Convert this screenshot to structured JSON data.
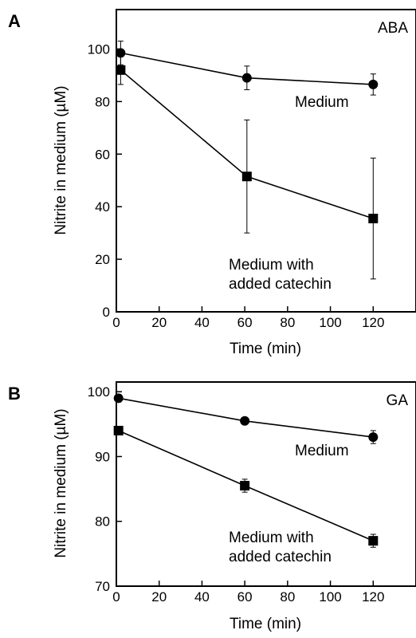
{
  "chart_data": [
    {
      "panel": "A",
      "type": "line",
      "condition_label": "ABA",
      "xlabel": "Time (min)",
      "ylabel": "Nitrite in medium (µM)",
      "xlim": [
        0,
        140
      ],
      "ylim": [
        0,
        115
      ],
      "xticks": [
        0,
        20,
        40,
        60,
        80,
        100,
        120
      ],
      "yticks": [
        0,
        20,
        40,
        60,
        80,
        100
      ],
      "grid": false,
      "legend": "none (series labeled directly on plot)",
      "series": [
        {
          "name": "Medium",
          "marker": "circle",
          "x": [
            2,
            61,
            120
          ],
          "y": [
            98.5,
            89,
            86.5
          ],
          "err": [
            4.5,
            4.5,
            4
          ]
        },
        {
          "name": "Medium with added catechin",
          "label_lines": [
            "Medium with",
            "added catechin"
          ],
          "marker": "square",
          "x": [
            2,
            61,
            120
          ],
          "y": [
            92,
            51.5,
            35.5
          ],
          "err": [
            5.5,
            21.5,
            23
          ]
        }
      ]
    },
    {
      "panel": "B",
      "type": "line",
      "condition_label": "GA",
      "xlabel": "Time (min)",
      "ylabel": "Nitrite in medium (µM)",
      "xlim": [
        0,
        140
      ],
      "ylim": [
        70,
        101.5
      ],
      "xticks": [
        0,
        20,
        40,
        60,
        80,
        100,
        120
      ],
      "yticks": [
        70,
        80,
        90,
        100
      ],
      "grid": false,
      "legend": "none (series labeled directly on plot)",
      "series": [
        {
          "name": "Medium",
          "marker": "circle",
          "x": [
            1,
            60,
            120
          ],
          "y": [
            99,
            95.5,
            93
          ],
          "err": [
            0.6,
            0.3,
            1
          ]
        },
        {
          "name": "Medium with added catechin",
          "label_lines": [
            "Medium with",
            "added catechin"
          ],
          "marker": "square",
          "x": [
            1,
            60,
            120
          ],
          "y": [
            94,
            85.5,
            77
          ],
          "err": [
            0.3,
            1,
            1
          ]
        }
      ]
    }
  ]
}
